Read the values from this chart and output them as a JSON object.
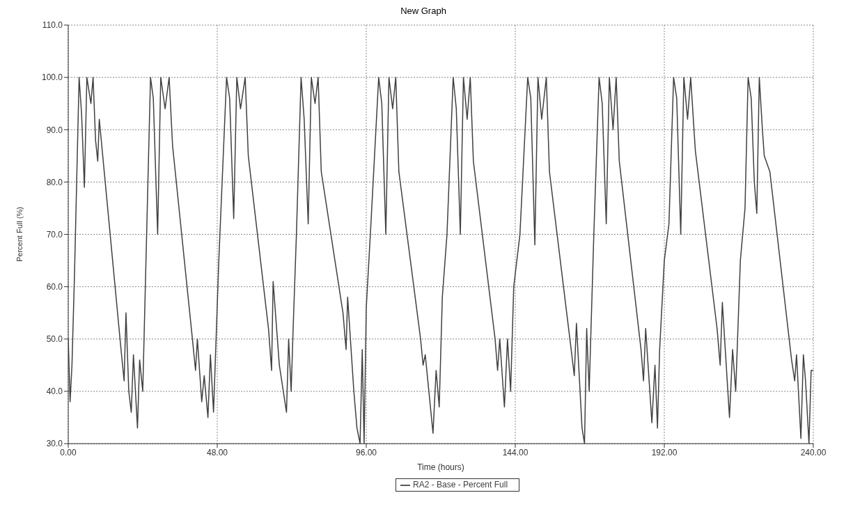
{
  "chart_data": {
    "type": "line",
    "title": "New Graph",
    "xlabel": "Time (hours)",
    "ylabel": "Percent Full (%)",
    "x": [
      0,
      0.6,
      1.2,
      2,
      3.5,
      4.3,
      5.2,
      6,
      7.3,
      8,
      8.8,
      9.5,
      10,
      17,
      18,
      18.6,
      19.5,
      20.3,
      21,
      22.3,
      23,
      24,
      25,
      26.5,
      27.4,
      28.8,
      29.8,
      31.2,
      32.5,
      33.6,
      40,
      41,
      41.6,
      43,
      43.8,
      45,
      45.8,
      46.8,
      48.5,
      51,
      52,
      53.3,
      54.3,
      55.5,
      57,
      58,
      64.5,
      65.5,
      66,
      68,
      70.3,
      71,
      71.8,
      72.5,
      73.5,
      75,
      76,
      77.3,
      78.3,
      79.5,
      80.5,
      81.5,
      88.5,
      89.5,
      90,
      92,
      93,
      94,
      94.7,
      95.3,
      96,
      97.5,
      100,
      101,
      102.3,
      103.3,
      104.5,
      105.5,
      106.5,
      113.5,
      114.3,
      115,
      116.5,
      117.5,
      118.5,
      119.5,
      120.5,
      122,
      124,
      125,
      126.3,
      127.3,
      128.5,
      129.5,
      130.5,
      137.5,
      138.3,
      139,
      140.5,
      141.5,
      142.5,
      143.5,
      145.5,
      148,
      149,
      150.3,
      151.3,
      152.5,
      154,
      155,
      162,
      163,
      163.7,
      165.5,
      166.3,
      167,
      167.8,
      169.3,
      171,
      172,
      173.3,
      174.3,
      175.5,
      176.5,
      177.5,
      184.5,
      185.3,
      186,
      188,
      189,
      189.8,
      190.5,
      192,
      193.5,
      195,
      196,
      197.3,
      198.3,
      199.5,
      200.5,
      202,
      209,
      210,
      210.7,
      213,
      214,
      215,
      216.5,
      218,
      219,
      220,
      221,
      221.8,
      222.6,
      223.6,
      224.2,
      226,
      233,
      234,
      234.6,
      236,
      236.8,
      237.5,
      238.6,
      239.3,
      240
    ],
    "series": [
      {
        "name": "RA2 - Base - Percent Full",
        "color": "#404040",
        "values": [
          50,
          38,
          45,
          62,
          100,
          93,
          79,
          100,
          95,
          100,
          88,
          84,
          92,
          48,
          42,
          55,
          40,
          36,
          47,
          33,
          46,
          40,
          64,
          100,
          96,
          70,
          100,
          94,
          100,
          87,
          50,
          44,
          50,
          38,
          43,
          35,
          47,
          36,
          65,
          100,
          96,
          73,
          100,
          94,
          100,
          85,
          52,
          44,
          61,
          45,
          36,
          50,
          40,
          53,
          70,
          100,
          92,
          72,
          100,
          95,
          100,
          82,
          55,
          48,
          58,
          40,
          33,
          30,
          48,
          30,
          56,
          72,
          100,
          95,
          70,
          100,
          94,
          100,
          82,
          50,
          45,
          47,
          38,
          32,
          44,
          37,
          58,
          70,
          100,
          94,
          70,
          100,
          92,
          100,
          84,
          50,
          44,
          50,
          37,
          50,
          40,
          60,
          70,
          100,
          96,
          68,
          100,
          92,
          100,
          82,
          48,
          43,
          53,
          33,
          30,
          52,
          40,
          70,
          100,
          95,
          72,
          100,
          90,
          100,
          84,
          48,
          42,
          52,
          34,
          45,
          33,
          48,
          65,
          72,
          100,
          96,
          70,
          100,
          92,
          100,
          86,
          52,
          45,
          57,
          35,
          48,
          40,
          65,
          75,
          100,
          96,
          80,
          74,
          100,
          90,
          85,
          82,
          46,
          42,
          47,
          31,
          47,
          42,
          30,
          44,
          44
        ]
      }
    ],
    "xlim": [
      0,
      240
    ],
    "xticks": [
      {
        "value": 0,
        "label": "0.00"
      },
      {
        "value": 48,
        "label": "48.00"
      },
      {
        "value": 96,
        "label": "96.00"
      },
      {
        "value": 144,
        "label": "144.00"
      },
      {
        "value": 192,
        "label": "192.00"
      },
      {
        "value": 240,
        "label": "240.00"
      }
    ],
    "ylim": [
      30,
      110
    ],
    "yticks": [
      {
        "value": 30,
        "label": "30.0"
      },
      {
        "value": 40,
        "label": "40.0"
      },
      {
        "value": 50,
        "label": "50.0"
      },
      {
        "value": 60,
        "label": "60.0"
      },
      {
        "value": 70,
        "label": "70.0"
      },
      {
        "value": 80,
        "label": "80.0"
      },
      {
        "value": 90,
        "label": "90.0"
      },
      {
        "value": 100,
        "label": "100.0"
      },
      {
        "value": 110,
        "label": "110.0"
      }
    ],
    "grid": true,
    "legend": "bottom",
    "marker": "none",
    "line_style": "solid"
  }
}
